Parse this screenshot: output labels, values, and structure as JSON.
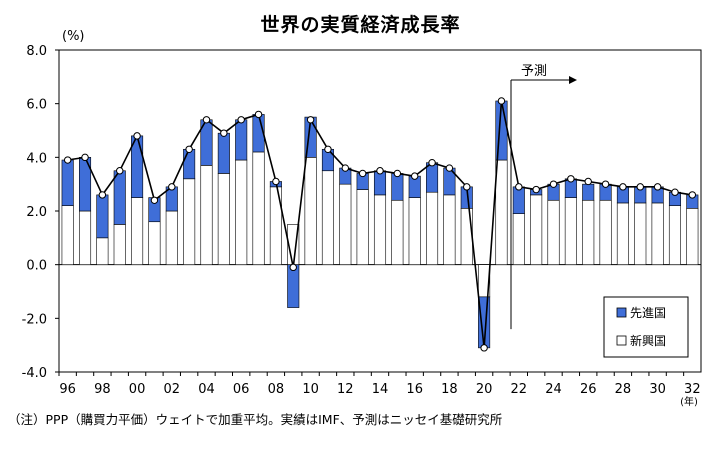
{
  "chart_data": {
    "type": "bar",
    "title": "世界の実質経済成長率",
    "y_unit": "(%)",
    "x_unit": "(年)",
    "ylim": [
      -4.0,
      8.0
    ],
    "yticks": [
      "8.0",
      "6.0",
      "4.0",
      "2.0",
      "0.0",
      "-2.0",
      "-4.0"
    ],
    "grid": false,
    "stacked": true,
    "legend_position": "bottom-right",
    "x": [
      "96",
      "97",
      "98",
      "99",
      "00",
      "01",
      "02",
      "03",
      "04",
      "05",
      "06",
      "07",
      "08",
      "09",
      "10",
      "11",
      "12",
      "13",
      "14",
      "15",
      "16",
      "17",
      "18",
      "19",
      "20",
      "21",
      "22",
      "23",
      "24",
      "25",
      "26",
      "27",
      "28",
      "29",
      "30",
      "31",
      "32"
    ],
    "x_tick_labels": [
      "96",
      "98",
      "00",
      "02",
      "04",
      "06",
      "08",
      "10",
      "12",
      "14",
      "16",
      "18",
      "20",
      "22",
      "24",
      "26",
      "28",
      "30",
      "32"
    ],
    "series": [
      {
        "name": "先進国",
        "color": "#3f6ed8",
        "values": [
          1.7,
          2.0,
          1.6,
          2.0,
          2.3,
          0.9,
          0.9,
          1.1,
          1.7,
          1.5,
          1.5,
          1.4,
          0.2,
          -1.6,
          1.5,
          0.8,
          0.6,
          0.6,
          0.9,
          1.0,
          0.8,
          1.1,
          1.0,
          0.8,
          -1.9,
          2.2,
          1.0,
          0.2,
          0.6,
          0.7,
          0.6,
          0.6,
          0.6,
          0.6,
          0.6,
          0.5,
          0.5
        ]
      },
      {
        "name": "新興国",
        "color": "#ffffff",
        "values": [
          2.2,
          2.0,
          1.0,
          1.5,
          2.5,
          1.6,
          2.0,
          3.2,
          3.7,
          3.4,
          3.9,
          4.2,
          2.9,
          1.5,
          4.0,
          3.5,
          3.0,
          2.8,
          2.6,
          2.4,
          2.5,
          2.7,
          2.6,
          2.1,
          -1.2,
          3.9,
          1.9,
          2.6,
          2.4,
          2.5,
          2.4,
          2.4,
          2.3,
          2.3,
          2.3,
          2.2,
          2.1
        ]
      }
    ],
    "world_line": {
      "values": [
        3.9,
        4.0,
        2.6,
        3.5,
        4.8,
        2.4,
        2.9,
        4.3,
        5.4,
        4.9,
        5.4,
        5.6,
        3.1,
        -0.1,
        5.4,
        4.3,
        3.6,
        3.4,
        3.5,
        3.4,
        3.3,
        3.8,
        3.6,
        2.9,
        -3.1,
        6.1,
        2.9,
        2.8,
        3.0,
        3.2,
        3.1,
        3.0,
        2.9,
        2.9,
        2.9,
        2.7,
        2.6
      ]
    },
    "forecast_label": "予測",
    "forecast_start": "22"
  },
  "footnote": "（注）PPP（購買力平価）ウェイトで加重平均。実績はIMF、予測はニッセイ基礎研究所"
}
